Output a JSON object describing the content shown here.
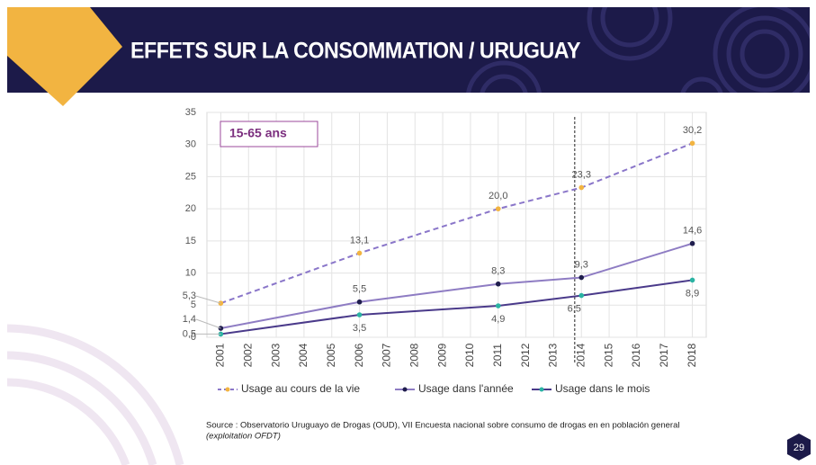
{
  "header": {
    "title": "EFFETS SUR LA CONSOMMATION / URUGUAY"
  },
  "chart_data": {
    "type": "line",
    "annotation": "15-65 ans",
    "x": [
      2001,
      2006,
      2011,
      2014,
      2018
    ],
    "xlim": [
      2000.5,
      2018.5
    ],
    "xticks": [
      2001,
      2002,
      2003,
      2004,
      2005,
      2006,
      2007,
      2008,
      2009,
      2010,
      2011,
      2012,
      2013,
      2014,
      2015,
      2016,
      2017,
      2018
    ],
    "ylim": [
      0,
      35
    ],
    "yticks": [
      0,
      5,
      10,
      15,
      20,
      25,
      30,
      35
    ],
    "grid": true,
    "legend": "bottom",
    "series": [
      {
        "name": "Usage au cours de la vie",
        "color": "#8a76c9",
        "marker_color": "#f2b441",
        "dash": true,
        "values": [
          5.3,
          13.1,
          20.0,
          23.3,
          30.2
        ],
        "value_labels": [
          "5,3",
          "13,1",
          "20,0",
          "23,3",
          "30,2"
        ]
      },
      {
        "name": "Usage dans l'année",
        "color": "#8e7cc3",
        "marker_color": "#1f1d4d",
        "dash": false,
        "values": [
          1.4,
          5.5,
          8.3,
          9.3,
          14.6
        ],
        "value_labels": [
          "1,4",
          "5,5",
          "8,3",
          "9,3",
          "14,6"
        ]
      },
      {
        "name": "Usage dans le mois",
        "color": "#4a3a8a",
        "marker_color": "#2bb3a3",
        "dash": false,
        "values": [
          0.5,
          3.5,
          4.9,
          6.5,
          8.9
        ],
        "value_labels": [
          "0,5",
          "3,5",
          "4,9",
          "6,5",
          "8,9"
        ]
      }
    ]
  },
  "source": "Source : Observatorio Uruguayo de Drogas (OUD), VII Encuesta nacional sobre consumo de drogas en en población general",
  "source_note": "(exploitation OFDT)",
  "page_number": "29"
}
